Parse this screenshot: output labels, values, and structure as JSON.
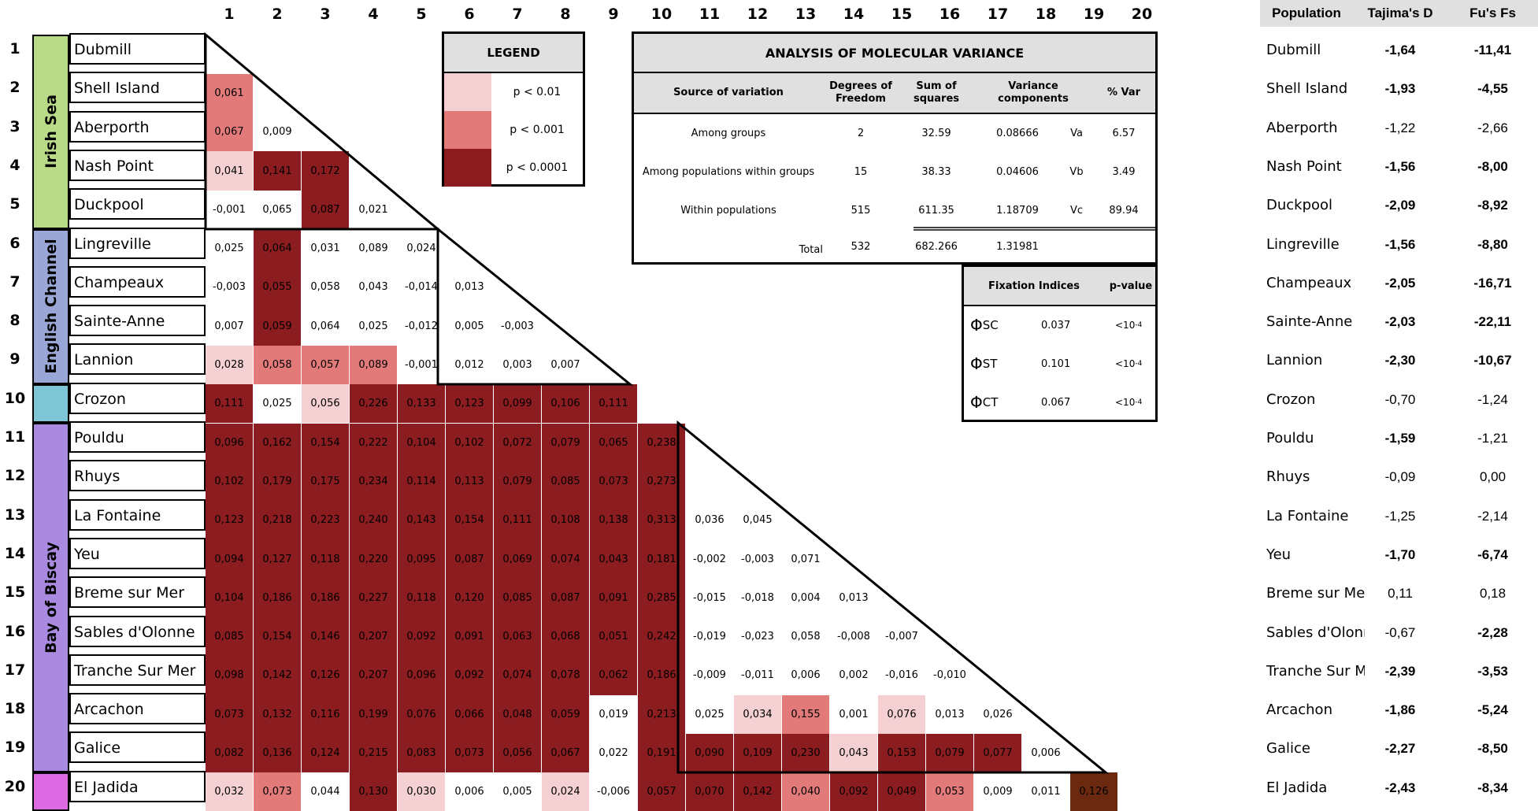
{
  "column_numbers": [
    "1",
    "2",
    "3",
    "4",
    "5",
    "6",
    "7",
    "8",
    "9",
    "10",
    "11",
    "12",
    "13",
    "14",
    "15",
    "16",
    "17",
    "18",
    "19",
    "20"
  ],
  "regions": [
    {
      "name": "Irish Sea",
      "color": "#b9da87",
      "rows": [
        1,
        5
      ]
    },
    {
      "name": "English Channel",
      "color": "#9aa7d6",
      "rows": [
        6,
        9
      ]
    },
    {
      "name": "",
      "color": "#7ec5d6",
      "rows": [
        10,
        10
      ]
    },
    {
      "name": "Bay of Biscay",
      "color": "#a98ae0",
      "rows": [
        11,
        19
      ]
    },
    {
      "name": "",
      "color": "#dc6be3",
      "rows": [
        20,
        20
      ]
    }
  ],
  "populations": [
    {
      "num": "1",
      "name": "Dubmill",
      "tajima": "-1,64",
      "tajima_sig": true,
      "fu": "-11,41",
      "fu_sig": true,
      "stat_name": "Dubmill"
    },
    {
      "num": "2",
      "name": "Shell Island",
      "tajima": "-1,93",
      "tajima_sig": true,
      "fu": "-4,55",
      "fu_sig": true,
      "stat_name": "Shell Island"
    },
    {
      "num": "3",
      "name": "Aberporth",
      "tajima": "-1,22",
      "tajima_sig": false,
      "fu": "-2,66",
      "fu_sig": false,
      "stat_name": "Aberporth"
    },
    {
      "num": "4",
      "name": "Nash Point",
      "tajima": "-1,56",
      "tajima_sig": true,
      "fu": "-8,00",
      "fu_sig": true,
      "stat_name": "Nash Point"
    },
    {
      "num": "5",
      "name": "Duckpool",
      "tajima": "-2,09",
      "tajima_sig": true,
      "fu": "-8,92",
      "fu_sig": true,
      "stat_name": "Duckpool"
    },
    {
      "num": "6",
      "name": "Lingreville",
      "tajima": "-1,56",
      "tajima_sig": true,
      "fu": "-8,80",
      "fu_sig": true,
      "stat_name": "Lingreville"
    },
    {
      "num": "7",
      "name": "Champeaux",
      "tajima": "-2,05",
      "tajima_sig": true,
      "fu": "-16,71",
      "fu_sig": true,
      "stat_name": "Champeaux"
    },
    {
      "num": "8",
      "name": "Sainte-Anne",
      "tajima": "-2,03",
      "tajima_sig": true,
      "fu": "-22,11",
      "fu_sig": true,
      "stat_name": "Sainte-Anne"
    },
    {
      "num": "9",
      "name": "Lannion",
      "tajima": "-2,30",
      "tajima_sig": true,
      "fu": "-10,67",
      "fu_sig": true,
      "stat_name": "Lannion"
    },
    {
      "num": "10",
      "name": "Crozon",
      "tajima": "-0,70",
      "tajima_sig": false,
      "fu": "-1,24",
      "fu_sig": false,
      "stat_name": "Crozon"
    },
    {
      "num": "11",
      "name": "Pouldu",
      "tajima": "-1,59",
      "tajima_sig": true,
      "fu": "-1,21",
      "fu_sig": false,
      "stat_name": "Pouldu"
    },
    {
      "num": "12",
      "name": "Rhuys",
      "tajima": "-0,09",
      "tajima_sig": false,
      "fu": "0,00",
      "fu_sig": false,
      "stat_name": "Rhuys"
    },
    {
      "num": "13",
      "name": "La Fontaine",
      "tajima": "-1,25",
      "tajima_sig": false,
      "fu": "-2,14",
      "fu_sig": false,
      "stat_name": "La Fontaine"
    },
    {
      "num": "14",
      "name": "Yeu",
      "tajima": "-1,70",
      "tajima_sig": true,
      "fu": "-6,74",
      "fu_sig": true,
      "stat_name": "Yeu"
    },
    {
      "num": "15",
      "name": "Breme sur Mer",
      "tajima": "0,11",
      "tajima_sig": false,
      "fu": "0,18",
      "fu_sig": false,
      "stat_name": "Breme sur Mer"
    },
    {
      "num": "16",
      "name": "Sables d'Olonne",
      "tajima": "-0,67",
      "tajima_sig": false,
      "fu": "-2,28",
      "fu_sig": true,
      "stat_name": "Sables d'Olonne"
    },
    {
      "num": "17",
      "name": "Tranche Sur Mer",
      "tajima": "-2,39",
      "tajima_sig": true,
      "fu": "-3,53",
      "fu_sig": true,
      "stat_name": "Tranche Sur Mer"
    },
    {
      "num": "18",
      "name": "Arcachon",
      "tajima": "-1,86",
      "tajima_sig": true,
      "fu": "-5,24",
      "fu_sig": true,
      "stat_name": "Arcachon"
    },
    {
      "num": "19",
      "name": "Galice",
      "tajima": "-2,27",
      "tajima_sig": true,
      "fu": "-8,50",
      "fu_sig": true,
      "stat_name": "Galice"
    },
    {
      "num": "20",
      "name": "El Jadida",
      "tajima": "-2,43",
      "tajima_sig": true,
      "fu": "-8,34",
      "fu_sig": true,
      "stat_name": "El Jadida"
    }
  ],
  "matrix": [
    [],
    [
      [
        "0,061",
        2
      ]
    ],
    [
      [
        "0,067",
        2
      ],
      [
        "0,009",
        0
      ]
    ],
    [
      [
        "0,041",
        1
      ],
      [
        "0,141",
        3
      ],
      [
        "0,172",
        3
      ]
    ],
    [
      [
        "-0,001",
        0
      ],
      [
        "0,065",
        0
      ],
      [
        "0,087",
        3
      ],
      [
        "0,021",
        0
      ]
    ],
    [
      [
        "0,025",
        0
      ],
      [
        "0,064",
        3
      ],
      [
        "0,031",
        0
      ],
      [
        "0,089",
        0
      ],
      [
        "0,024",
        0
      ]
    ],
    [
      [
        "-0,003",
        0
      ],
      [
        "0,055",
        3
      ],
      [
        "0,058",
        0
      ],
      [
        "0,043",
        0
      ],
      [
        "-0,014",
        0
      ],
      [
        "0,013",
        0
      ]
    ],
    [
      [
        "0,007",
        0
      ],
      [
        "0,059",
        3
      ],
      [
        "0,064",
        0
      ],
      [
        "0,025",
        0
      ],
      [
        "-0,012",
        0
      ],
      [
        "0,005",
        0
      ],
      [
        "-0,003",
        0
      ]
    ],
    [
      [
        "0,028",
        1
      ],
      [
        "0,058",
        2
      ],
      [
        "0,057",
        2
      ],
      [
        "0,089",
        2
      ],
      [
        "-0,001",
        0
      ],
      [
        "0,012",
        0
      ],
      [
        "0,003",
        0
      ],
      [
        "0,007",
        0
      ]
    ],
    [
      [
        "0,111",
        3
      ],
      [
        "0,025",
        0
      ],
      [
        "0,056",
        1
      ],
      [
        "0,226",
        3
      ],
      [
        "0,133",
        3
      ],
      [
        "0,123",
        3
      ],
      [
        "0,099",
        3
      ],
      [
        "0,106",
        3
      ],
      [
        "0,111",
        3
      ]
    ],
    [
      [
        "0,096",
        3
      ],
      [
        "0,162",
        3
      ],
      [
        "0,154",
        3
      ],
      [
        "0,222",
        3
      ],
      [
        "0,104",
        3
      ],
      [
        "0,102",
        3
      ],
      [
        "0,072",
        3
      ],
      [
        "0,079",
        3
      ],
      [
        "0,065",
        3
      ],
      [
        "0,238",
        3
      ]
    ],
    [
      [
        "0,102",
        3
      ],
      [
        "0,179",
        3
      ],
      [
        "0,175",
        3
      ],
      [
        "0,234",
        3
      ],
      [
        "0,114",
        3
      ],
      [
        "0,113",
        3
      ],
      [
        "0,079",
        3
      ],
      [
        "0,085",
        3
      ],
      [
        "0,073",
        3
      ],
      [
        "0,273",
        3
      ],
      [
        "",
        0
      ]
    ],
    [
      [
        "0,123",
        3
      ],
      [
        "0,218",
        3
      ],
      [
        "0,223",
        3
      ],
      [
        "0,240",
        3
      ],
      [
        "0,143",
        3
      ],
      [
        "0,154",
        3
      ],
      [
        "0,111",
        3
      ],
      [
        "0,108",
        3
      ],
      [
        "0,138",
        3
      ],
      [
        "0,313",
        3
      ],
      [
        "0,036",
        0
      ],
      [
        "0,045",
        0
      ]
    ],
    [
      [
        "0,094",
        3
      ],
      [
        "0,127",
        3
      ],
      [
        "0,118",
        3
      ],
      [
        "0,220",
        3
      ],
      [
        "0,095",
        3
      ],
      [
        "0,087",
        3
      ],
      [
        "0,069",
        3
      ],
      [
        "0,074",
        3
      ],
      [
        "0,043",
        3
      ],
      [
        "0,181",
        3
      ],
      [
        "-0,002",
        0
      ],
      [
        "-0,003",
        0
      ],
      [
        "0,071",
        0
      ]
    ],
    [
      [
        "0,104",
        3
      ],
      [
        "0,186",
        3
      ],
      [
        "0,186",
        3
      ],
      [
        "0,227",
        3
      ],
      [
        "0,118",
        3
      ],
      [
        "0,120",
        3
      ],
      [
        "0,085",
        3
      ],
      [
        "0,087",
        3
      ],
      [
        "0,091",
        3
      ],
      [
        "0,285",
        3
      ],
      [
        "-0,015",
        0
      ],
      [
        "-0,018",
        0
      ],
      [
        "0,004",
        0
      ],
      [
        "0,013",
        0
      ]
    ],
    [
      [
        "0,085",
        3
      ],
      [
        "0,154",
        3
      ],
      [
        "0,146",
        3
      ],
      [
        "0,207",
        3
      ],
      [
        "0,092",
        3
      ],
      [
        "0,091",
        3
      ],
      [
        "0,063",
        3
      ],
      [
        "0,068",
        3
      ],
      [
        "0,051",
        3
      ],
      [
        "0,242",
        3
      ],
      [
        "-0,019",
        0
      ],
      [
        "-0,023",
        0
      ],
      [
        "0,058",
        0
      ],
      [
        "-0,008",
        0
      ],
      [
        "-0,007",
        0
      ]
    ],
    [
      [
        "0,098",
        3
      ],
      [
        "0,142",
        3
      ],
      [
        "0,126",
        3
      ],
      [
        "0,207",
        3
      ],
      [
        "0,096",
        3
      ],
      [
        "0,092",
        3
      ],
      [
        "0,074",
        3
      ],
      [
        "0,078",
        3
      ],
      [
        "0,062",
        3
      ],
      [
        "0,186",
        3
      ],
      [
        "-0,009",
        0
      ],
      [
        "-0,011",
        0
      ],
      [
        "0,006",
        0
      ],
      [
        "0,002",
        0
      ],
      [
        "-0,016",
        0
      ],
      [
        "-0,010",
        0
      ]
    ],
    [
      [
        "0,073",
        3
      ],
      [
        "0,132",
        3
      ],
      [
        "0,116",
        3
      ],
      [
        "0,199",
        3
      ],
      [
        "0,076",
        3
      ],
      [
        "0,066",
        3
      ],
      [
        "0,048",
        3
      ],
      [
        "0,059",
        3
      ],
      [
        "0,019",
        0
      ],
      [
        "0,213",
        3
      ],
      [
        "0,025",
        0
      ],
      [
        "0,034",
        1
      ],
      [
        "0,155",
        2
      ],
      [
        "0,001",
        0
      ],
      [
        "0,076",
        1
      ],
      [
        "0,013",
        0
      ],
      [
        "0,026",
        0
      ]
    ],
    [
      [
        "0,082",
        3
      ],
      [
        "0,136",
        3
      ],
      [
        "0,124",
        3
      ],
      [
        "0,215",
        3
      ],
      [
        "0,083",
        3
      ],
      [
        "0,073",
        3
      ],
      [
        "0,056",
        3
      ],
      [
        "0,067",
        3
      ],
      [
        "0,022",
        0
      ],
      [
        "0,191",
        3
      ],
      [
        "0,090",
        3
      ],
      [
        "0,109",
        3
      ],
      [
        "0,230",
        3
      ],
      [
        "0,043",
        1
      ],
      [
        "0,153",
        3
      ],
      [
        "0,079",
        3
      ],
      [
        "0,077",
        3
      ],
      [
        "0,006",
        0
      ]
    ],
    [
      [
        "0,032",
        1
      ],
      [
        "0,073",
        2
      ],
      [
        "0,044",
        0
      ],
      [
        "0,130",
        3
      ],
      [
        "0,030",
        1
      ],
      [
        "0,006",
        0
      ],
      [
        "0,005",
        0
      ],
      [
        "0,024",
        1
      ],
      [
        "-0,006",
        0
      ],
      [
        "0,057",
        3
      ],
      [
        "0,070",
        3
      ],
      [
        "0,142",
        3
      ],
      [
        "0,040",
        2
      ],
      [
        "0,092",
        3
      ],
      [
        "0,049",
        3
      ],
      [
        "0,053",
        2
      ],
      [
        "0,009",
        0
      ],
      [
        "0,011",
        0
      ],
      [
        "0,126",
        4
      ]
    ]
  ],
  "colors": {
    "white": "#ffffff",
    "light": "#f4d0d2",
    "medium": "#e37a7a",
    "dark": "#8b1c1f",
    "brown": "#6b2a10"
  },
  "legend": {
    "title": "LEGEND",
    "items": [
      {
        "label": "p < 0.01",
        "color": "#f4d0d2"
      },
      {
        "label": "p < 0.001",
        "color": "#e37a7a"
      },
      {
        "label": "p < 0.0001",
        "color": "#8b1c1f"
      }
    ]
  },
  "amova": {
    "title": "ANALYSIS OF MOLECULAR VARIANCE",
    "headers": {
      "source": "Source of variation",
      "df": "Degrees of Freedom",
      "ss": "Sum of squares",
      "vc": "Variance components",
      "pct": "% Var"
    },
    "rows": [
      {
        "source": "Among groups",
        "df": "2",
        "ss": "32.59",
        "vc": "0.08666",
        "vc_sym": "Va",
        "pct": "6.57"
      },
      {
        "source": "Among populations within groups",
        "df": "15",
        "ss": "38.33",
        "vc": "0.04606",
        "vc_sym": "Vb",
        "pct": "3.49"
      },
      {
        "source": "Within populations",
        "df": "515",
        "ss": "611.35",
        "vc": "1.18709",
        "vc_sym": "Vc",
        "pct": "89.94"
      }
    ],
    "total": {
      "label": "Total",
      "df": "532",
      "ss": "682.266",
      "vc": "1.31981"
    }
  },
  "fixation": {
    "header_label": "Fixation Indices",
    "header_p": "p-value",
    "rows": [
      {
        "symbol": "Φ",
        "sub": "SC",
        "value": "0.037",
        "p_base": "<10",
        "p_exp": "-4"
      },
      {
        "symbol": "Φ",
        "sub": "ST",
        "value": "0.101",
        "p_base": "<10",
        "p_exp": "-4"
      },
      {
        "symbol": "Φ",
        "sub": "CT",
        "value": "0.067",
        "p_base": "<10",
        "p_exp": "-4"
      }
    ]
  },
  "stats_headers": {
    "population": "Population",
    "tajima": "Tajima's D",
    "fu": "Fu's Fs"
  }
}
